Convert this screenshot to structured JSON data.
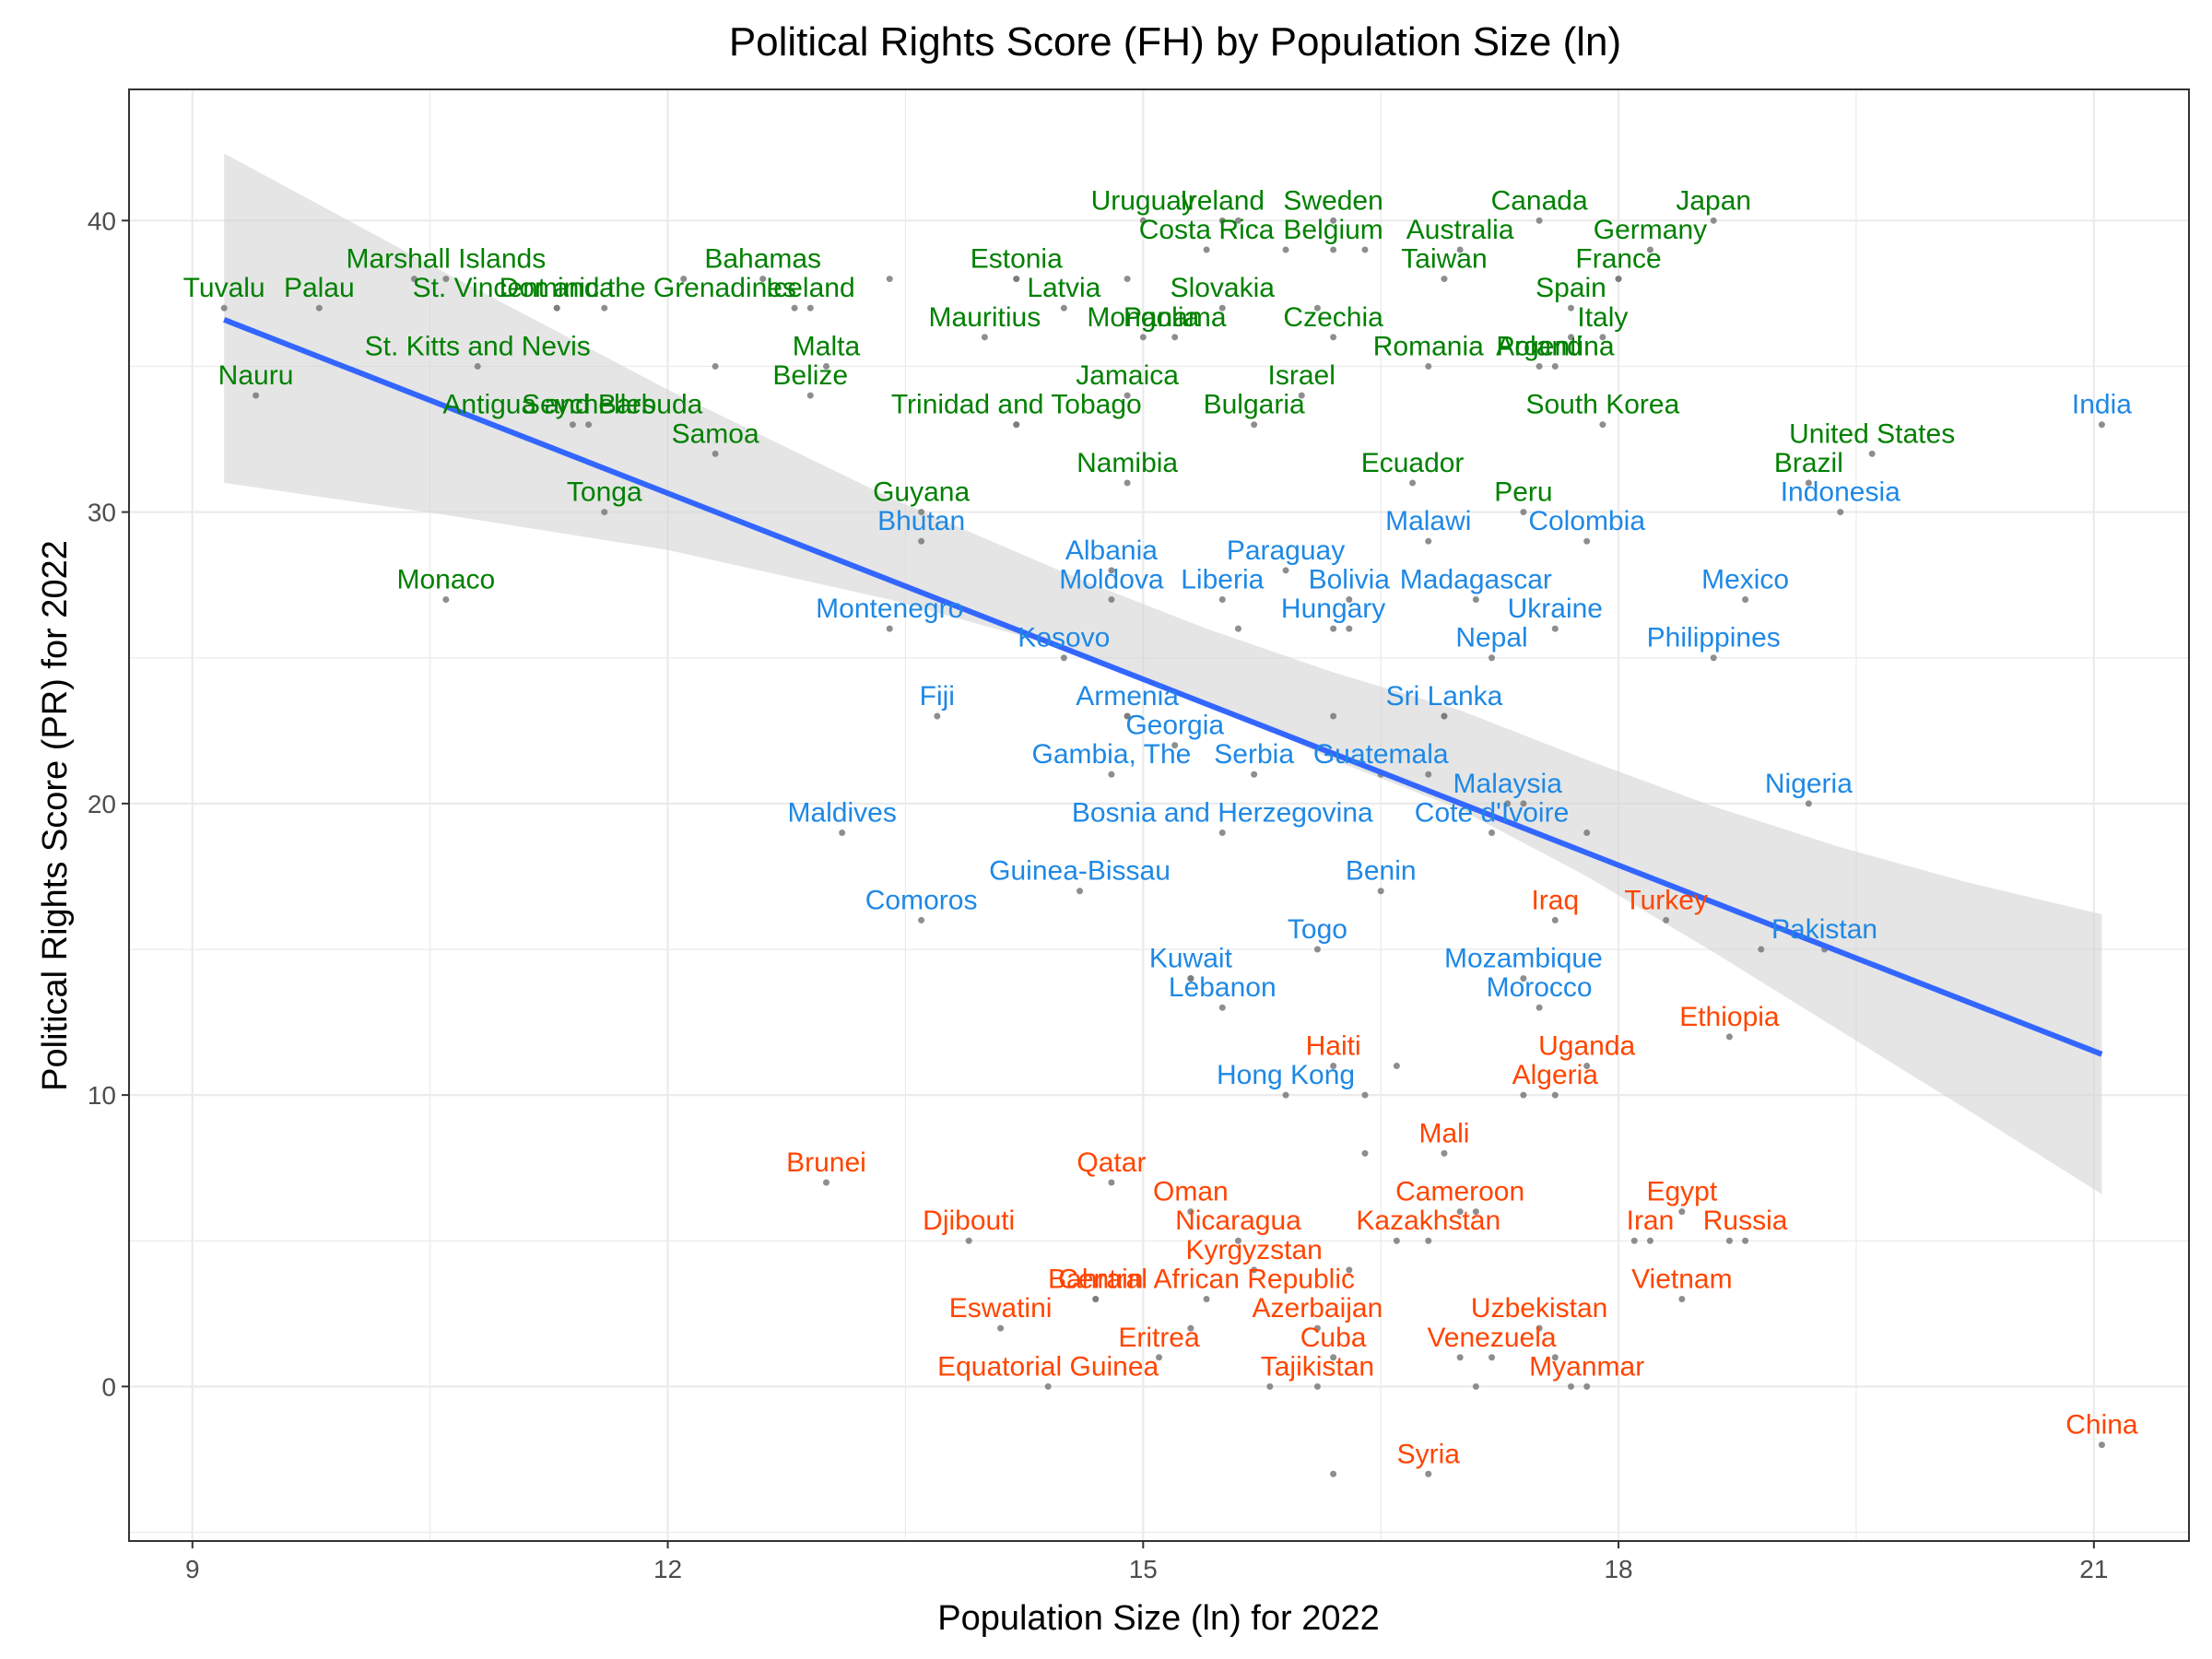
{
  "chart_data": {
    "type": "scatter",
    "title": "Political Rights Score (FH) by Population Size (ln)",
    "xlabel": "Population Size (ln) for 2022",
    "ylabel": "Political Rights Score (PR) for 2022",
    "xlim": [
      8.6,
      21.6
    ],
    "ylim": [
      -5.3,
      44.5
    ],
    "x_ticks": [
      9,
      12,
      15,
      18,
      21
    ],
    "y_ticks": [
      0,
      10,
      20,
      30,
      40
    ],
    "grid": true,
    "legend": "none",
    "colors": {
      "Free": "#008000",
      "Partly Free": "#1E88E5",
      "Not Free": "#FF4500",
      "point": "#7a7a7a",
      "trend": "#3366FF",
      "band": "#d4d4d4"
    },
    "trend": {
      "x": [
        9.2,
        21.05
      ],
      "y": [
        36.6,
        11.4
      ]
    },
    "confidence_band": {
      "x": [
        9.2,
        10.6,
        12.0,
        13.4,
        14.6,
        15.4,
        16.2,
        17.0,
        17.8,
        18.6,
        19.4,
        20.2,
        21.05
      ],
      "lower": [
        31.0,
        29.9,
        28.7,
        27.0,
        25.2,
        23.5,
        21.5,
        19.8,
        17.5,
        14.9,
        12.2,
        9.5,
        6.6
      ],
      "upper": [
        42.3,
        38.2,
        34.2,
        30.5,
        27.7,
        26.0,
        24.5,
        23.2,
        21.5,
        19.9,
        18.5,
        17.3,
        16.2
      ]
    },
    "points": [
      {
        "label": "Tuvalu",
        "x": 9.2,
        "y": 37,
        "status": "Free"
      },
      {
        "label": "Palau",
        "x": 9.8,
        "y": 37,
        "status": "Free"
      },
      {
        "label": "Nauru",
        "x": 9.4,
        "y": 34,
        "status": "Free"
      },
      {
        "label": "Marshall Islands",
        "x": 10.6,
        "y": 38,
        "status": "Free"
      },
      {
        "label": "Dominica",
        "x": 11.3,
        "y": 37,
        "status": "Free"
      },
      {
        "label": "St. Vincent and the Grenadines",
        "x": 11.6,
        "y": 37,
        "status": "Free"
      },
      {
        "label": "St. Kitts and Nevis",
        "x": 10.8,
        "y": 35,
        "status": "Free"
      },
      {
        "label": "Seychelles",
        "x": 11.5,
        "y": 33,
        "status": "Free"
      },
      {
        "label": "Antigua and Barbuda",
        "x": 11.4,
        "y": 33,
        "status": "Free"
      },
      {
        "label": "Samoa",
        "x": 12.3,
        "y": 32,
        "status": "Free"
      },
      {
        "label": "Tonga",
        "x": 11.6,
        "y": 30,
        "status": "Free"
      },
      {
        "label": "Monaco",
        "x": 10.6,
        "y": 27,
        "status": "Free"
      },
      {
        "label": "Bahamas",
        "x": 12.6,
        "y": 38,
        "status": "Free"
      },
      {
        "label": "Iceland",
        "x": 12.9,
        "y": 37,
        "status": "Free"
      },
      {
        "label": "Malta",
        "x": 13.0,
        "y": 35,
        "status": "Free"
      },
      {
        "label": "Belize",
        "x": 12.9,
        "y": 34,
        "status": "Free"
      },
      {
        "label": "Estonia",
        "x": 14.2,
        "y": 38,
        "status": "Free"
      },
      {
        "label": "Latvia",
        "x": 14.5,
        "y": 37,
        "status": "Free"
      },
      {
        "label": "Mauritius",
        "x": 14.0,
        "y": 36,
        "status": "Free"
      },
      {
        "label": "Trinidad and Tobago",
        "x": 14.2,
        "y": 33,
        "status": "Free"
      },
      {
        "label": "Guyana",
        "x": 13.6,
        "y": 30,
        "status": "Free"
      },
      {
        "label": "Uruguay",
        "x": 15.0,
        "y": 40,
        "status": "Free"
      },
      {
        "label": "Ireland",
        "x": 15.5,
        "y": 40,
        "status": "Free"
      },
      {
        "label": "Costa Rica",
        "x": 15.4,
        "y": 39,
        "status": "Free"
      },
      {
        "label": "Slovakia",
        "x": 15.5,
        "y": 37,
        "status": "Free"
      },
      {
        "label": "Mongolia",
        "x": 15.0,
        "y": 36,
        "status": "Free"
      },
      {
        "label": "Panama",
        "x": 15.2,
        "y": 36,
        "status": "Free"
      },
      {
        "label": "Jamaica",
        "x": 14.9,
        "y": 34,
        "status": "Free"
      },
      {
        "label": "Namibia",
        "x": 14.9,
        "y": 31,
        "status": "Free"
      },
      {
        "label": "Sweden",
        "x": 16.2,
        "y": 40,
        "status": "Free"
      },
      {
        "label": "Belgium",
        "x": 16.2,
        "y": 39,
        "status": "Free"
      },
      {
        "label": "Czechia",
        "x": 16.2,
        "y": 36,
        "status": "Free"
      },
      {
        "label": "Israel",
        "x": 16.0,
        "y": 34,
        "status": "Free"
      },
      {
        "label": "Bulgaria",
        "x": 15.7,
        "y": 33,
        "status": "Free"
      },
      {
        "label": "Australia",
        "x": 17.0,
        "y": 39,
        "status": "Free"
      },
      {
        "label": "Taiwan",
        "x": 16.9,
        "y": 38,
        "status": "Free"
      },
      {
        "label": "Romania",
        "x": 16.8,
        "y": 35,
        "status": "Free"
      },
      {
        "label": "Ecuador",
        "x": 16.7,
        "y": 31,
        "status": "Free"
      },
      {
        "label": "Canada",
        "x": 17.5,
        "y": 40,
        "status": "Free"
      },
      {
        "label": "Spain",
        "x": 17.7,
        "y": 37,
        "status": "Free"
      },
      {
        "label": "Argentina",
        "x": 17.6,
        "y": 35,
        "status": "Free"
      },
      {
        "label": "Poland",
        "x": 17.5,
        "y": 35,
        "status": "Free"
      },
      {
        "label": "South Korea",
        "x": 17.9,
        "y": 33,
        "status": "Free"
      },
      {
        "label": "Peru",
        "x": 17.4,
        "y": 30,
        "status": "Free"
      },
      {
        "label": "Germany",
        "x": 18.2,
        "y": 39,
        "status": "Free"
      },
      {
        "label": "France",
        "x": 18.0,
        "y": 38,
        "status": "Free"
      },
      {
        "label": "Italy",
        "x": 17.9,
        "y": 36,
        "status": "Free"
      },
      {
        "label": "Japan",
        "x": 18.6,
        "y": 40,
        "status": "Free"
      },
      {
        "label": "United States",
        "x": 19.6,
        "y": 32,
        "status": "Free"
      },
      {
        "label": "Brazil",
        "x": 19.2,
        "y": 31,
        "status": "Free"
      },
      {
        "label": "India",
        "x": 21.05,
        "y": 33,
        "status": "Partly Free"
      },
      {
        "label": "Indonesia",
        "x": 19.4,
        "y": 30,
        "status": "Partly Free"
      },
      {
        "label": "Bhutan",
        "x": 13.6,
        "y": 29,
        "status": "Partly Free"
      },
      {
        "label": "Montenegro",
        "x": 13.4,
        "y": 26,
        "status": "Partly Free"
      },
      {
        "label": "Kosovo",
        "x": 14.5,
        "y": 25,
        "status": "Partly Free"
      },
      {
        "label": "Albania",
        "x": 14.8,
        "y": 28,
        "status": "Partly Free"
      },
      {
        "label": "Moldova",
        "x": 14.8,
        "y": 27,
        "status": "Partly Free"
      },
      {
        "label": "Liberia",
        "x": 15.5,
        "y": 27,
        "status": "Partly Free"
      },
      {
        "label": "Paraguay",
        "x": 15.9,
        "y": 28,
        "status": "Partly Free"
      },
      {
        "label": "Bolivia",
        "x": 16.3,
        "y": 27,
        "status": "Partly Free"
      },
      {
        "label": "Hungary",
        "x": 16.2,
        "y": 26,
        "status": "Partly Free"
      },
      {
        "label": "Madagascar",
        "x": 17.1,
        "y": 27,
        "status": "Partly Free"
      },
      {
        "label": "Ukraine",
        "x": 17.6,
        "y": 26,
        "status": "Partly Free"
      },
      {
        "label": "Nepal",
        "x": 17.2,
        "y": 25,
        "status": "Partly Free"
      },
      {
        "label": "Malawi",
        "x": 16.8,
        "y": 29,
        "status": "Partly Free"
      },
      {
        "label": "Colombia",
        "x": 17.8,
        "y": 29,
        "status": "Partly Free"
      },
      {
        "label": "Mexico",
        "x": 18.8,
        "y": 27,
        "status": "Partly Free"
      },
      {
        "label": "Philippines",
        "x": 18.6,
        "y": 25,
        "status": "Partly Free"
      },
      {
        "label": "Fiji",
        "x": 13.7,
        "y": 23,
        "status": "Partly Free"
      },
      {
        "label": "Armenia",
        "x": 14.9,
        "y": 23,
        "status": "Partly Free"
      },
      {
        "label": "Georgia",
        "x": 15.2,
        "y": 22,
        "status": "Partly Free"
      },
      {
        "label": "Gambia, The",
        "x": 14.8,
        "y": 21,
        "status": "Partly Free"
      },
      {
        "label": "Serbia",
        "x": 15.7,
        "y": 21,
        "status": "Partly Free"
      },
      {
        "label": "Sri Lanka",
        "x": 16.9,
        "y": 23,
        "status": "Partly Free"
      },
      {
        "label": "Guatemala",
        "x": 16.5,
        "y": 21,
        "status": "Partly Free"
      },
      {
        "label": "Malaysia",
        "x": 17.3,
        "y": 20,
        "status": "Partly Free"
      },
      {
        "label": "Cote d'Ivoire",
        "x": 17.2,
        "y": 19,
        "status": "Partly Free"
      },
      {
        "label": "Nigeria",
        "x": 19.2,
        "y": 20,
        "status": "Partly Free"
      },
      {
        "label": "Maldives",
        "x": 13.1,
        "y": 19,
        "status": "Partly Free"
      },
      {
        "label": "Bosnia and Herzegovina",
        "x": 15.5,
        "y": 19,
        "status": "Partly Free"
      },
      {
        "label": "Guinea-Bissau",
        "x": 14.6,
        "y": 17,
        "status": "Partly Free"
      },
      {
        "label": "Comoros",
        "x": 13.6,
        "y": 16,
        "status": "Partly Free"
      },
      {
        "label": "Benin",
        "x": 16.5,
        "y": 17,
        "status": "Partly Free"
      },
      {
        "label": "Togo",
        "x": 16.1,
        "y": 15,
        "status": "Partly Free"
      },
      {
        "label": "Kuwait",
        "x": 15.3,
        "y": 14,
        "status": "Partly Free"
      },
      {
        "label": "Lebanon",
        "x": 15.5,
        "y": 13,
        "status": "Partly Free"
      },
      {
        "label": "Mozambique",
        "x": 17.4,
        "y": 14,
        "status": "Partly Free"
      },
      {
        "label": "Morocco",
        "x": 17.5,
        "y": 13,
        "status": "Partly Free"
      },
      {
        "label": "Pakistan",
        "x": 19.3,
        "y": 15,
        "status": "Partly Free"
      },
      {
        "label": "Hong Kong",
        "x": 15.9,
        "y": 10,
        "status": "Partly Free"
      },
      {
        "label": "Iraq",
        "x": 17.6,
        "y": 16,
        "status": "Not Free"
      },
      {
        "label": "Turkey",
        "x": 18.3,
        "y": 16,
        "status": "Not Free"
      },
      {
        "label": "Ethiopia",
        "x": 18.7,
        "y": 12,
        "status": "Not Free"
      },
      {
        "label": "Haiti",
        "x": 16.2,
        "y": 11,
        "status": "Not Free"
      },
      {
        "label": "Uganda",
        "x": 17.8,
        "y": 11,
        "status": "Not Free"
      },
      {
        "label": "Algeria",
        "x": 17.6,
        "y": 10,
        "status": "Not Free"
      },
      {
        "label": "Mali",
        "x": 16.9,
        "y": 8,
        "status": "Not Free"
      },
      {
        "label": "Brunei",
        "x": 13.0,
        "y": 7,
        "status": "Not Free"
      },
      {
        "label": "Qatar",
        "x": 14.8,
        "y": 7,
        "status": "Not Free"
      },
      {
        "label": "Oman",
        "x": 15.3,
        "y": 6,
        "status": "Not Free"
      },
      {
        "label": "Djibouti",
        "x": 13.9,
        "y": 5,
        "status": "Not Free"
      },
      {
        "label": "Nicaragua",
        "x": 15.6,
        "y": 5,
        "status": "Not Free"
      },
      {
        "label": "Kyrgyzstan",
        "x": 15.7,
        "y": 4,
        "status": "Not Free"
      },
      {
        "label": "Cameroon",
        "x": 17.0,
        "y": 6,
        "status": "Not Free"
      },
      {
        "label": "Kazakhstan",
        "x": 16.8,
        "y": 5,
        "status": "Not Free"
      },
      {
        "label": "Egypt",
        "x": 18.4,
        "y": 6,
        "status": "Not Free"
      },
      {
        "label": "Russia",
        "x": 18.8,
        "y": 5,
        "status": "Not Free"
      },
      {
        "label": "Iran",
        "x": 18.2,
        "y": 5,
        "status": "Not Free"
      },
      {
        "label": "Vietnam",
        "x": 18.4,
        "y": 3,
        "status": "Not Free"
      },
      {
        "label": "Central African Republic",
        "x": 15.4,
        "y": 3,
        "status": "Not Free"
      },
      {
        "label": "Bahrain",
        "x": 14.7,
        "y": 3,
        "status": "Not Free"
      },
      {
        "label": "Azerbaijan",
        "x": 16.1,
        "y": 2,
        "status": "Not Free"
      },
      {
        "label": "Uzbekistan",
        "x": 17.5,
        "y": 2,
        "status": "Not Free"
      },
      {
        "label": "Eswatini",
        "x": 14.1,
        "y": 2,
        "status": "Not Free"
      },
      {
        "label": "Eritrea",
        "x": 15.1,
        "y": 1,
        "status": "Not Free"
      },
      {
        "label": "Cuba",
        "x": 16.2,
        "y": 1,
        "status": "Not Free"
      },
      {
        "label": "Venezuela",
        "x": 17.2,
        "y": 1,
        "status": "Not Free"
      },
      {
        "label": "Equatorial Guinea",
        "x": 14.4,
        "y": 0,
        "status": "Not Free"
      },
      {
        "label": "Tajikistan",
        "x": 16.1,
        "y": 0,
        "status": "Not Free"
      },
      {
        "label": "Myanmar",
        "x": 17.8,
        "y": 0,
        "status": "Not Free"
      },
      {
        "label": "China",
        "x": 21.05,
        "y": -2,
        "status": "Not Free"
      },
      {
        "label": "Syria",
        "x": 16.8,
        "y": -3,
        "status": "Not Free"
      }
    ],
    "extra_points": [
      {
        "x": 10.4,
        "y": 38
      },
      {
        "x": 12.1,
        "y": 38
      },
      {
        "x": 13.4,
        "y": 38
      },
      {
        "x": 12.3,
        "y": 35
      },
      {
        "x": 11.3,
        "y": 37
      },
      {
        "x": 12.8,
        "y": 37
      },
      {
        "x": 14.2,
        "y": 38
      },
      {
        "x": 14.9,
        "y": 38
      },
      {
        "x": 14.2,
        "y": 33
      },
      {
        "x": 15.6,
        "y": 40
      },
      {
        "x": 15.9,
        "y": 39
      },
      {
        "x": 16.1,
        "y": 37
      },
      {
        "x": 16.4,
        "y": 39
      },
      {
        "x": 18.0,
        "y": 38
      },
      {
        "x": 17.7,
        "y": 36
      },
      {
        "x": 16.3,
        "y": 26
      },
      {
        "x": 16.9,
        "y": 23
      },
      {
        "x": 17.4,
        "y": 20
      },
      {
        "x": 17.8,
        "y": 19
      },
      {
        "x": 15.6,
        "y": 26
      },
      {
        "x": 16.2,
        "y": 23
      },
      {
        "x": 16.8,
        "y": 21
      },
      {
        "x": 14.9,
        "y": 23
      },
      {
        "x": 15.3,
        "y": 14
      },
      {
        "x": 16.6,
        "y": 11
      },
      {
        "x": 16.4,
        "y": 10
      },
      {
        "x": 17.4,
        "y": 10
      },
      {
        "x": 16.4,
        "y": 8
      },
      {
        "x": 16.6,
        "y": 5
      },
      {
        "x": 17.1,
        "y": 6
      },
      {
        "x": 18.7,
        "y": 5
      },
      {
        "x": 16.3,
        "y": 4
      },
      {
        "x": 17.6,
        "y": 1
      },
      {
        "x": 17.0,
        "y": 1
      },
      {
        "x": 17.7,
        "y": 0
      },
      {
        "x": 15.8,
        "y": 0
      },
      {
        "x": 17.1,
        "y": 0
      },
      {
        "x": 16.2,
        "y": -3
      },
      {
        "x": 15.3,
        "y": 2
      },
      {
        "x": 14.7,
        "y": 3
      },
      {
        "x": 18.9,
        "y": 15
      },
      {
        "x": 18.1,
        "y": 5
      }
    ]
  }
}
